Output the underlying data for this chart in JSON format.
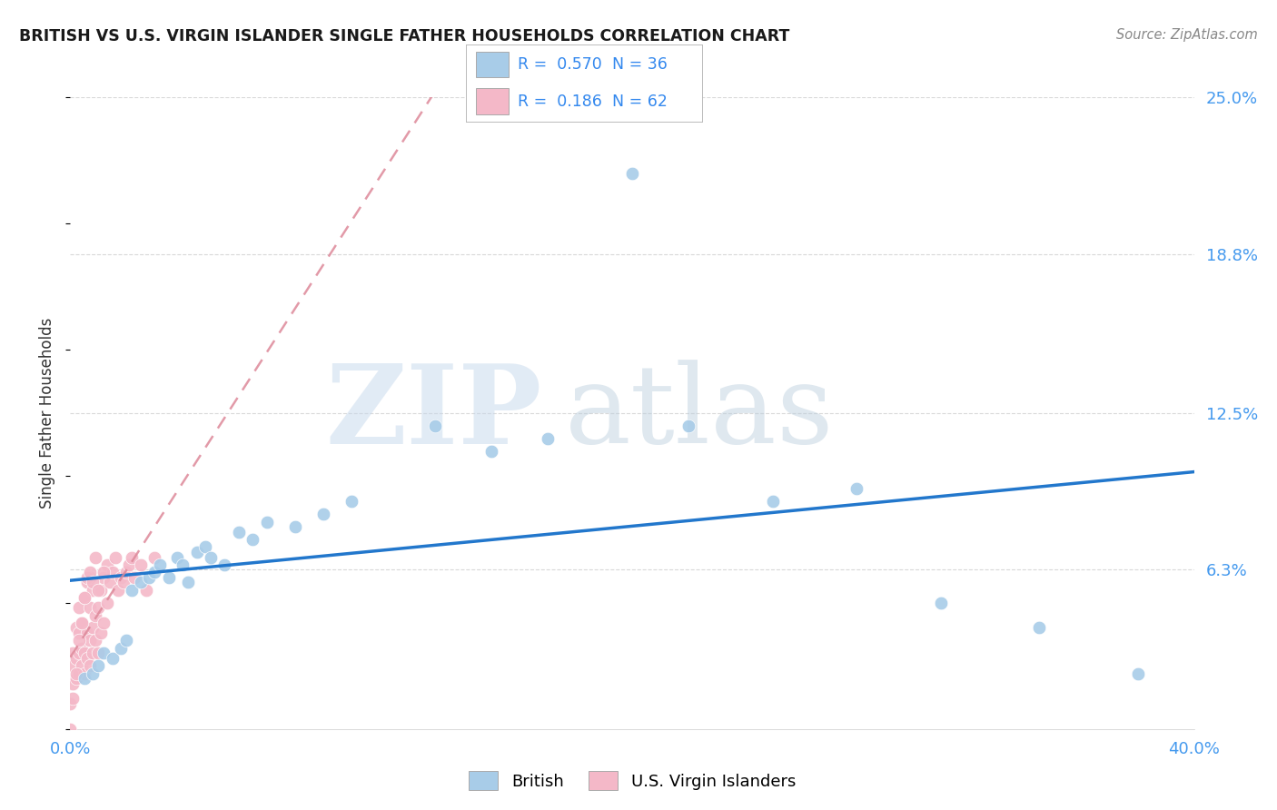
{
  "title": "BRITISH VS U.S. VIRGIN ISLANDER SINGLE FATHER HOUSEHOLDS CORRELATION CHART",
  "source": "Source: ZipAtlas.com",
  "ylabel": "Single Father Households",
  "xlim": [
    0.0,
    0.4
  ],
  "ylim": [
    0.0,
    0.25
  ],
  "ytick_labels_right": [
    "6.3%",
    "12.5%",
    "18.8%",
    "25.0%"
  ],
  "yticks_right": [
    0.063,
    0.125,
    0.188,
    0.25
  ],
  "legend_r_british": "0.570",
  "legend_n_british": "36",
  "legend_r_usvi": "0.186",
  "legend_n_usvi": "62",
  "british_color": "#a8cce8",
  "usvi_color": "#f4b8c8",
  "british_line_color": "#2277cc",
  "usvi_line_color": "#dd8899",
  "watermark_zip": "ZIP",
  "watermark_atlas": "atlas",
  "watermark_color": "#d0e4f0",
  "background_color": "#ffffff",
  "grid_color": "#d0d0d0",
  "british_x": [
    0.005,
    0.008,
    0.01,
    0.012,
    0.015,
    0.018,
    0.02,
    0.022,
    0.025,
    0.028,
    0.03,
    0.032,
    0.035,
    0.038,
    0.04,
    0.042,
    0.045,
    0.048,
    0.05,
    0.055,
    0.06,
    0.065,
    0.07,
    0.08,
    0.09,
    0.1,
    0.13,
    0.15,
    0.17,
    0.2,
    0.22,
    0.25,
    0.28,
    0.31,
    0.345,
    0.38
  ],
  "british_y": [
    0.02,
    0.022,
    0.025,
    0.03,
    0.028,
    0.032,
    0.035,
    0.055,
    0.058,
    0.06,
    0.062,
    0.065,
    0.06,
    0.068,
    0.065,
    0.058,
    0.07,
    0.072,
    0.068,
    0.065,
    0.078,
    0.075,
    0.082,
    0.08,
    0.085,
    0.09,
    0.12,
    0.11,
    0.115,
    0.22,
    0.12,
    0.09,
    0.095,
    0.05,
    0.04,
    0.022
  ],
  "usvi_x": [
    0.0,
    0.001,
    0.001,
    0.001,
    0.002,
    0.002,
    0.002,
    0.003,
    0.003,
    0.003,
    0.003,
    0.004,
    0.004,
    0.004,
    0.005,
    0.005,
    0.005,
    0.006,
    0.006,
    0.006,
    0.007,
    0.007,
    0.007,
    0.007,
    0.008,
    0.008,
    0.008,
    0.009,
    0.009,
    0.01,
    0.01,
    0.011,
    0.011,
    0.012,
    0.012,
    0.013,
    0.013,
    0.014,
    0.015,
    0.016,
    0.017,
    0.018,
    0.019,
    0.02,
    0.021,
    0.022,
    0.023,
    0.025,
    0.027,
    0.03,
    0.0,
    0.001,
    0.002,
    0.003,
    0.004,
    0.005,
    0.006,
    0.007,
    0.008,
    0.009,
    0.01,
    0.012
  ],
  "usvi_y": [
    0.01,
    0.018,
    0.025,
    0.03,
    0.02,
    0.028,
    0.04,
    0.022,
    0.03,
    0.038,
    0.048,
    0.025,
    0.032,
    0.042,
    0.022,
    0.03,
    0.052,
    0.028,
    0.038,
    0.058,
    0.025,
    0.035,
    0.048,
    0.06,
    0.03,
    0.04,
    0.055,
    0.035,
    0.045,
    0.03,
    0.048,
    0.038,
    0.055,
    0.042,
    0.06,
    0.05,
    0.065,
    0.058,
    0.062,
    0.068,
    0.055,
    0.06,
    0.058,
    0.062,
    0.065,
    0.068,
    0.06,
    0.065,
    0.055,
    0.068,
    0.0,
    0.012,
    0.022,
    0.035,
    0.042,
    0.052,
    0.06,
    0.062,
    0.058,
    0.068,
    0.055,
    0.062
  ]
}
